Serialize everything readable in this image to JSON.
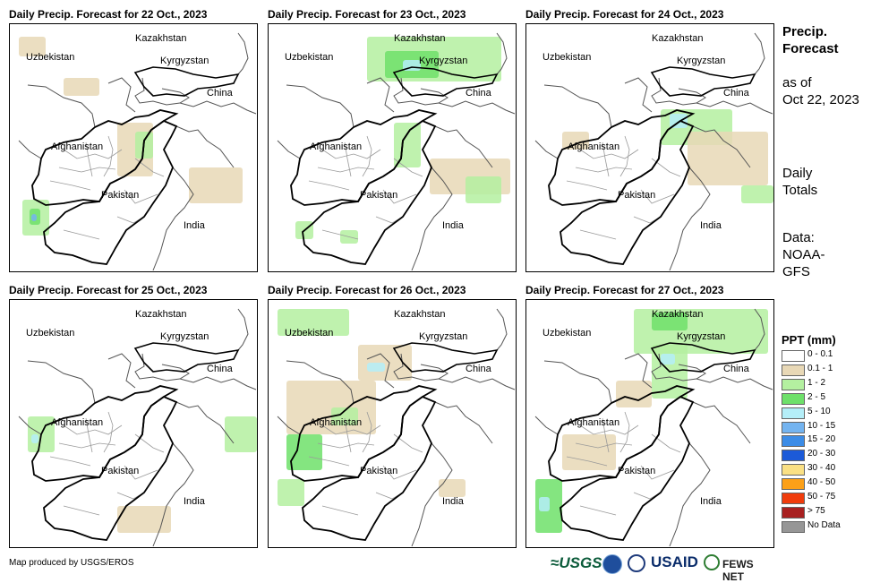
{
  "panels": [
    {
      "title": "Daily Precip. Forecast for 22 Oct., 2023"
    },
    {
      "title": "Daily Precip. Forecast for 23 Oct., 2023"
    },
    {
      "title": "Daily Precip. Forecast for 24 Oct., 2023"
    },
    {
      "title": "Daily Precip. Forecast for 25 Oct., 2023"
    },
    {
      "title": "Daily Precip. Forecast for 26 Oct., 2023"
    },
    {
      "title": "Daily Precip. Forecast for 27 Oct., 2023"
    }
  ],
  "map_labels": {
    "kazakhstan": "Kazakhstan",
    "uzbekistan": "Uzbekistan",
    "kyrgyzstan": "Kyrgyzstan",
    "china": "China",
    "afghanistan": "Afghanistan",
    "pakistan": "Pakistan",
    "india": "India"
  },
  "sidebar": {
    "title_line1": "Precip.",
    "title_line2": "Forecast",
    "asof_line1": "as of",
    "asof_line2": "Oct 22, 2023",
    "daily_line1": "Daily",
    "daily_line2": "Totals",
    "data_line1": "Data:",
    "data_line2": "NOAA-",
    "data_line3": "GFS"
  },
  "legend": {
    "title": "PPT (mm)",
    "items": [
      {
        "label": "0 - 0.1",
        "color": "#ffffff"
      },
      {
        "label": "0.1 - 1",
        "color": "#e8d8b6"
      },
      {
        "label": "1 - 2",
        "color": "#b4f0a0"
      },
      {
        "label": "2 - 5",
        "color": "#6ee06a"
      },
      {
        "label": "5 - 10",
        "color": "#b4eef8"
      },
      {
        "label": "10 - 15",
        "color": "#74b4f0"
      },
      {
        "label": "15 - 20",
        "color": "#3c8ce6"
      },
      {
        "label": "20 - 30",
        "color": "#1c5ad8"
      },
      {
        "label": "30 - 40",
        "color": "#fae084"
      },
      {
        "label": "40 - 50",
        "color": "#fca018"
      },
      {
        "label": "50 - 75",
        "color": "#f03c0c"
      },
      {
        "label": "> 75",
        "color": "#a82020"
      },
      {
        "label": "No Data",
        "color": "#969696"
      }
    ]
  },
  "footer": {
    "credit": "Map produced by USGS/EROS",
    "logos": {
      "usgs": "≈USGS",
      "usaid": "USAID",
      "fews": "FEWS NET"
    }
  }
}
